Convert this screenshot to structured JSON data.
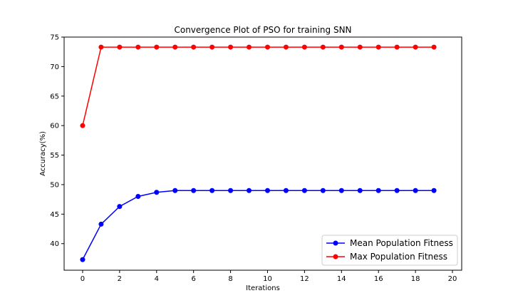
{
  "chart_data": {
    "type": "line",
    "title": "Convergence Plot of PSO for training SNN",
    "xlabel": "Iterations",
    "ylabel": "Accuracy(%)",
    "xlim": [
      -1,
      20.5
    ],
    "ylim": [
      35.5,
      75
    ],
    "xticks": [
      0,
      2,
      4,
      6,
      8,
      10,
      12,
      14,
      16,
      18,
      20
    ],
    "yticks": [
      40,
      45,
      50,
      55,
      60,
      65,
      70,
      75
    ],
    "grid": false,
    "legend_position": "lower-right",
    "x": [
      0,
      1,
      2,
      3,
      4,
      5,
      6,
      7,
      8,
      9,
      10,
      11,
      12,
      13,
      14,
      15,
      16,
      17,
      18,
      19
    ],
    "series": [
      {
        "name": "Mean Population Fitness",
        "color": "#0000ff",
        "marker": "circle",
        "values": [
          37.3,
          43.3,
          46.3,
          48.0,
          48.7,
          49.0,
          49.0,
          49.0,
          49.0,
          49.0,
          49.0,
          49.0,
          49.0,
          49.0,
          49.0,
          49.0,
          49.0,
          49.0,
          49.0,
          49.0
        ]
      },
      {
        "name": "Max Population Fitness",
        "color": "#ff0000",
        "marker": "circle",
        "values": [
          60.0,
          73.3,
          73.3,
          73.3,
          73.3,
          73.3,
          73.3,
          73.3,
          73.3,
          73.3,
          73.3,
          73.3,
          73.3,
          73.3,
          73.3,
          73.3,
          73.3,
          73.3,
          73.3,
          73.3
        ]
      }
    ]
  }
}
